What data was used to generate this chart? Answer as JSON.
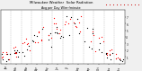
{
  "title": "Milwaukee Weather  Solar Radiation",
  "subtitle": "Avg per Day W/m²/minute",
  "bg_color": "#f0f0f0",
  "plot_bg": "#ffffff",
  "series1_color": "#000000",
  "series2_color": "#ff0000",
  "legend_box_color": "#ff0000",
  "ylim": [
    0,
    8
  ],
  "yticks": [
    1,
    2,
    3,
    4,
    5,
    6,
    7
  ],
  "months": [
    "Jan",
    "Feb",
    "Mar",
    "Apr",
    "May",
    "Jun",
    "Jul",
    "Aug",
    "Sep",
    "Oct",
    "Nov",
    "Dec"
  ],
  "seed": 12
}
